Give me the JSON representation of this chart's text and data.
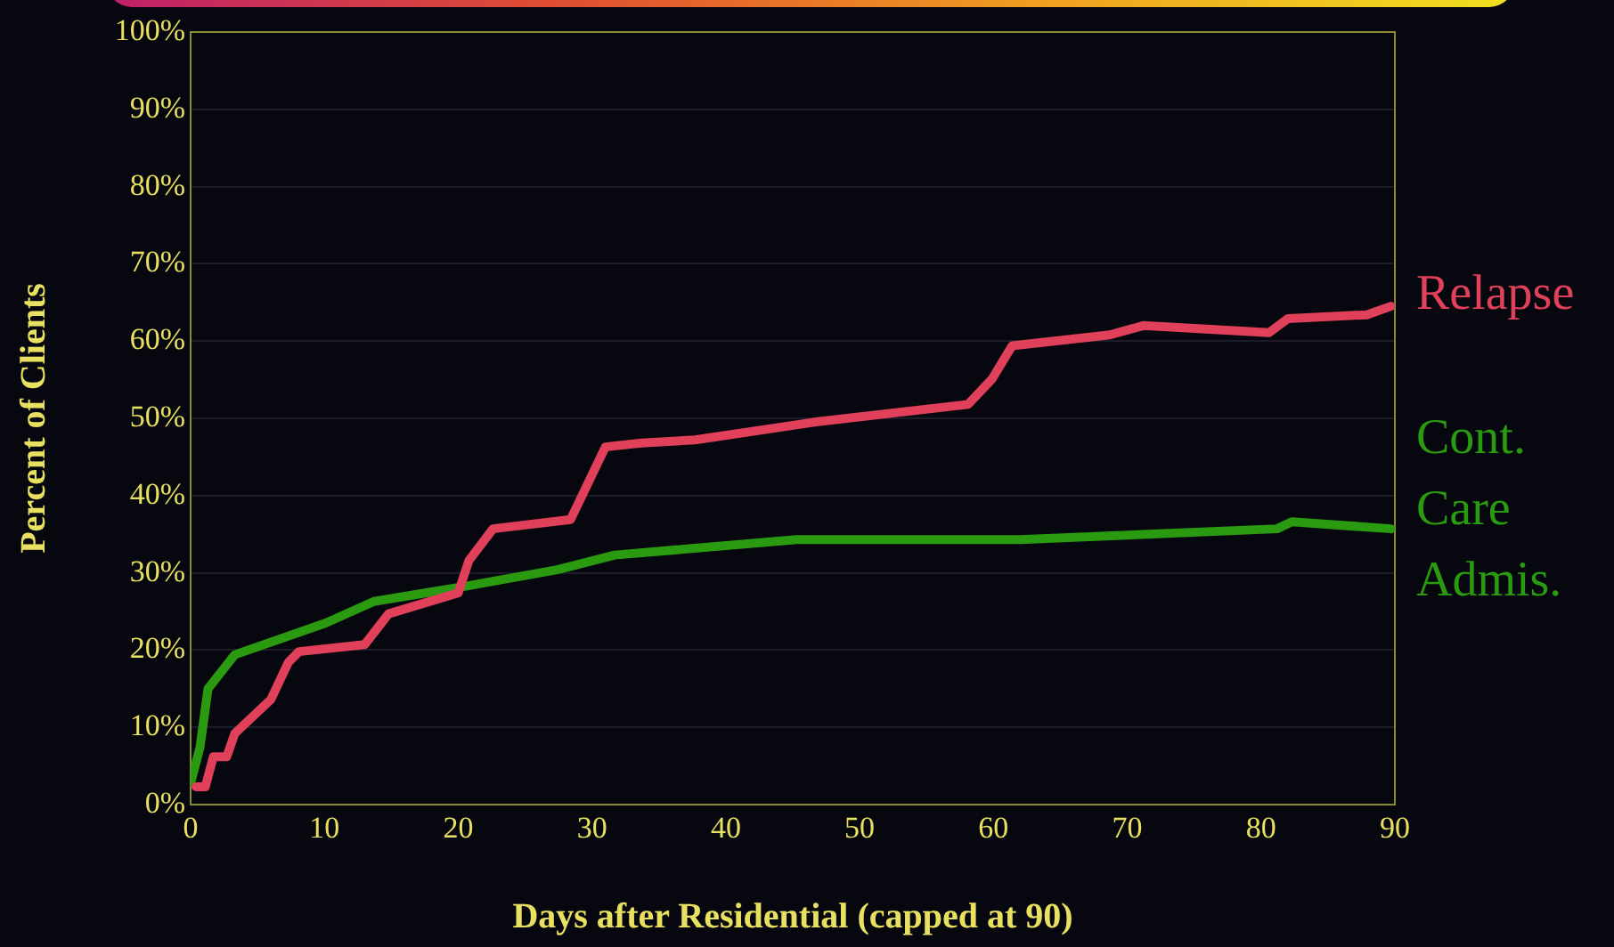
{
  "chart_data": {
    "type": "line",
    "xlabel": "Days after Residential (capped at 90)",
    "ylabel": "Percent of Clients",
    "xlim": [
      0,
      90
    ],
    "xticks": [
      0,
      10,
      20,
      30,
      40,
      50,
      60,
      70,
      80,
      90
    ],
    "ylim": [
      0,
      100
    ],
    "yticks": [
      {
        "value": 0,
        "label": "0%"
      },
      {
        "value": 10,
        "label": "10%"
      },
      {
        "value": 20,
        "label": "20%"
      },
      {
        "value": 30,
        "label": "30%"
      },
      {
        "value": 40,
        "label": "40%"
      },
      {
        "value": 50,
        "label": "50%"
      },
      {
        "value": 60,
        "label": "60%"
      },
      {
        "value": 70,
        "label": "70%"
      },
      {
        "value": 80,
        "label": "80%"
      },
      {
        "value": 90,
        "label": "90%"
      },
      {
        "value": 100,
        "label": "100%"
      }
    ],
    "grid": "y",
    "legend": false,
    "marker": "none",
    "line_style": "solid",
    "series": [
      {
        "name": "Relapse",
        "color": "#e0405a",
        "x": [
          0.4,
          1.1,
          1.7,
          2.7,
          3.3,
          6,
          7.3,
          8.1,
          13,
          14.8,
          20,
          20.8,
          22.6,
          28.4,
          31,
          33.7,
          37.7,
          46.6,
          58.1,
          59.9,
          61.4,
          68.7,
          71.2,
          80.6,
          82,
          87.9,
          89.7
        ],
        "values": [
          2.3,
          2.3,
          6.2,
          6.2,
          9.2,
          13.6,
          18.4,
          19.8,
          20.7,
          24.7,
          27.4,
          31.6,
          35.7,
          36.9,
          46.3,
          46.8,
          47.2,
          49.5,
          51.8,
          55.1,
          59.4,
          60.8,
          62,
          61.1,
          62.9,
          63.4,
          64.5
        ]
      },
      {
        "name": "Cont. Care Admis.",
        "color": "#2a9a10",
        "x": [
          0,
          0.7,
          1.3,
          3.3,
          10.1,
          13.7,
          20,
          27.4,
          31.7,
          45.3,
          62,
          81.2,
          82.3,
          89.7
        ],
        "values": [
          2.8,
          7.4,
          15,
          19.4,
          23.5,
          26.3,
          28.1,
          30.4,
          32.3,
          34.3,
          34.3,
          35.7,
          36.6,
          35.7
        ]
      }
    ]
  }
}
